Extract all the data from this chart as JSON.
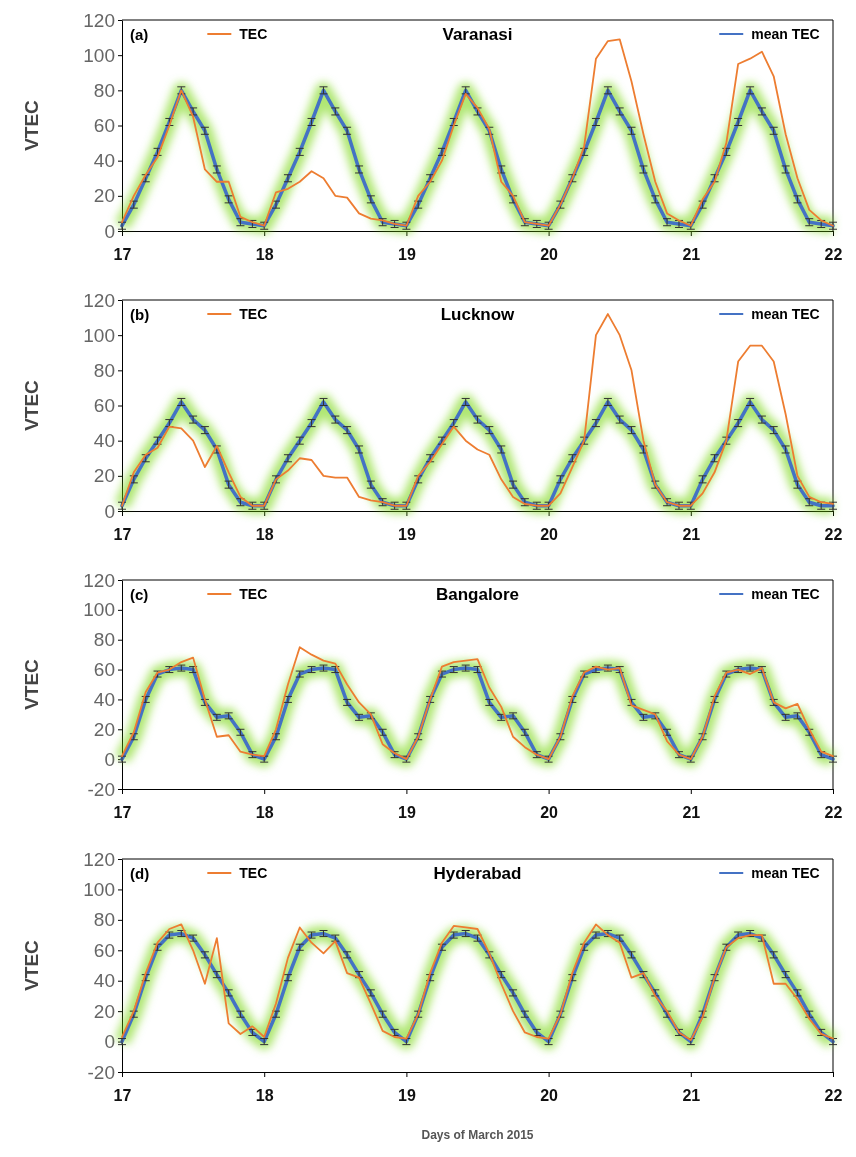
{
  "chart_data": [
    {
      "type": "line",
      "title": "Varanasi",
      "annotations": [
        "(a)"
      ],
      "ylabel": "VTEC",
      "legend": "top",
      "xlim": [
        17,
        22
      ],
      "xticks": [
        17,
        18,
        19,
        20,
        21,
        22
      ],
      "ylim": [
        0,
        120
      ],
      "yticks": [
        0,
        20,
        40,
        60,
        80,
        100,
        120
      ],
      "x": [
        17,
        17.083,
        17.167,
        17.25,
        17.333,
        17.417,
        17.5,
        17.583,
        17.667,
        17.75,
        17.833,
        17.917,
        18,
        18.083,
        18.167,
        18.25,
        18.333,
        18.417,
        18.5,
        18.583,
        18.667,
        18.75,
        18.833,
        18.917,
        19,
        19.083,
        19.167,
        19.25,
        19.333,
        19.417,
        19.5,
        19.583,
        19.667,
        19.75,
        19.833,
        19.917,
        20,
        20.083,
        20.167,
        20.25,
        20.333,
        20.417,
        20.5,
        20.583,
        20.667,
        20.75,
        20.833,
        20.917,
        21,
        21.083,
        21.167,
        21.25,
        21.333,
        21.417,
        21.5,
        21.583,
        21.667,
        21.75,
        21.833,
        21.917,
        22
      ],
      "series": [
        {
          "name": "TEC",
          "color": "#ed7d31",
          "values": [
            5,
            20,
            32,
            42,
            60,
            80,
            65,
            35,
            28,
            28,
            8,
            5,
            3,
            22,
            24,
            28,
            34,
            30,
            20,
            19,
            10,
            7,
            6,
            4,
            3,
            20,
            28,
            40,
            60,
            78,
            70,
            58,
            28,
            20,
            5,
            4,
            3,
            15,
            30,
            48,
            98,
            108,
            109,
            85,
            55,
            28,
            10,
            6,
            3,
            18,
            28,
            50,
            95,
            98,
            102,
            88,
            55,
            30,
            12,
            6,
            3
          ]
        },
        {
          "name": "mean TEC",
          "color": "#4472c4",
          "errors": [
            2,
            2,
            2,
            2,
            2,
            2,
            2,
            2,
            2,
            2,
            2,
            2,
            2,
            2,
            2,
            2,
            2,
            2,
            2,
            2,
            2,
            2,
            2,
            2,
            2,
            2,
            2,
            2,
            2,
            2,
            2,
            2,
            2,
            2,
            2,
            2,
            2,
            2,
            2,
            2,
            2,
            2,
            2,
            2,
            2,
            2,
            2,
            2,
            2,
            2,
            2,
            2,
            2,
            2,
            2,
            2,
            2,
            2,
            2,
            2,
            2
          ],
          "values": [
            3,
            15,
            30,
            45,
            62,
            80,
            68,
            57,
            35,
            18,
            5,
            4,
            3,
            15,
            30,
            45,
            62,
            80,
            68,
            57,
            35,
            18,
            5,
            4,
            3,
            15,
            30,
            45,
            62,
            80,
            68,
            57,
            35,
            18,
            5,
            4,
            3,
            15,
            30,
            45,
            62,
            80,
            68,
            57,
            35,
            18,
            5,
            4,
            3,
            15,
            30,
            45,
            62,
            80,
            68,
            57,
            35,
            18,
            5,
            4,
            3
          ]
        }
      ]
    },
    {
      "type": "line",
      "title": "Lucknow",
      "annotations": [
        "(b)"
      ],
      "ylabel": "VTEC",
      "legend": "top",
      "xlim": [
        17,
        22
      ],
      "xticks": [
        17,
        18,
        19,
        20,
        21,
        22
      ],
      "ylim": [
        0,
        120
      ],
      "yticks": [
        0,
        20,
        40,
        60,
        80,
        100,
        120
      ],
      "x": [
        17,
        17.083,
        17.167,
        17.25,
        17.333,
        17.417,
        17.5,
        17.583,
        17.667,
        17.75,
        17.833,
        17.917,
        18,
        18.083,
        18.167,
        18.25,
        18.333,
        18.417,
        18.5,
        18.583,
        18.667,
        18.75,
        18.833,
        18.917,
        19,
        19.083,
        19.167,
        19.25,
        19.333,
        19.417,
        19.5,
        19.583,
        19.667,
        19.75,
        19.833,
        19.917,
        20,
        20.083,
        20.167,
        20.25,
        20.333,
        20.417,
        20.5,
        20.583,
        20.667,
        20.75,
        20.833,
        20.917,
        21,
        21.083,
        21.167,
        21.25,
        21.333,
        21.417,
        21.5,
        21.583,
        21.667,
        21.75,
        21.833,
        21.917,
        22
      ],
      "series": [
        {
          "name": "TEC",
          "color": "#ed7d31",
          "values": [
            3,
            22,
            32,
            36,
            48,
            47,
            40,
            25,
            37,
            22,
            8,
            3,
            3,
            18,
            23,
            30,
            29,
            20,
            19,
            19,
            8,
            6,
            5,
            3,
            3,
            20,
            28,
            38,
            48,
            40,
            35,
            32,
            18,
            8,
            4,
            3,
            3,
            10,
            25,
            40,
            100,
            112,
            100,
            80,
            40,
            15,
            5,
            3,
            3,
            10,
            22,
            40,
            85,
            94,
            94,
            85,
            55,
            20,
            8,
            5,
            4
          ]
        },
        {
          "name": "mean TEC",
          "color": "#4472c4",
          "errors": [
            2,
            2,
            2,
            2,
            2,
            2,
            2,
            2,
            2,
            2,
            2,
            2,
            2,
            2,
            2,
            2,
            2,
            2,
            2,
            2,
            2,
            2,
            2,
            2,
            2,
            2,
            2,
            2,
            2,
            2,
            2,
            2,
            2,
            2,
            2,
            2,
            2,
            2,
            2,
            2,
            2,
            2,
            2,
            2,
            2,
            2,
            2,
            2,
            2,
            2,
            2,
            2,
            2,
            2,
            2,
            2,
            2,
            2,
            2,
            2,
            2
          ],
          "values": [
            3,
            18,
            30,
            40,
            50,
            62,
            52,
            46,
            35,
            15,
            5,
            3,
            3,
            18,
            30,
            40,
            50,
            62,
            52,
            46,
            35,
            15,
            5,
            3,
            3,
            18,
            30,
            40,
            50,
            62,
            52,
            46,
            35,
            15,
            5,
            3,
            3,
            18,
            30,
            40,
            50,
            62,
            52,
            46,
            35,
            15,
            5,
            3,
            3,
            18,
            30,
            40,
            50,
            62,
            52,
            46,
            35,
            15,
            5,
            3,
            3
          ]
        }
      ]
    },
    {
      "type": "line",
      "title": "Bangalore",
      "annotations": [
        "(c)"
      ],
      "ylabel": "VTEC",
      "legend": "top",
      "xlim": [
        17,
        22
      ],
      "xticks": [
        17,
        18,
        19,
        20,
        21,
        22
      ],
      "ylim": [
        -20,
        120
      ],
      "yticks": [
        -20,
        0,
        20,
        40,
        60,
        80,
        100,
        120
      ],
      "x": [
        17,
        17.083,
        17.167,
        17.25,
        17.333,
        17.417,
        17.5,
        17.583,
        17.667,
        17.75,
        17.833,
        17.917,
        18,
        18.083,
        18.167,
        18.25,
        18.333,
        18.417,
        18.5,
        18.583,
        18.667,
        18.75,
        18.833,
        18.917,
        19,
        19.083,
        19.167,
        19.25,
        19.333,
        19.417,
        19.5,
        19.583,
        19.667,
        19.75,
        19.833,
        19.917,
        20,
        20.083,
        20.167,
        20.25,
        20.333,
        20.417,
        20.5,
        20.583,
        20.667,
        20.75,
        20.833,
        20.917,
        21,
        21.083,
        21.167,
        21.25,
        21.333,
        21.417,
        21.5,
        21.583,
        21.667,
        21.75,
        21.833,
        21.917,
        22
      ],
      "series": [
        {
          "name": "TEC",
          "color": "#ed7d31",
          "values": [
            2,
            18,
            45,
            58,
            60,
            65,
            68,
            40,
            15,
            16,
            5,
            3,
            2,
            20,
            50,
            75,
            70,
            66,
            64,
            50,
            38,
            30,
            10,
            4,
            0,
            15,
            40,
            62,
            65,
            66,
            67,
            48,
            35,
            15,
            8,
            3,
            0,
            15,
            42,
            58,
            62,
            60,
            61,
            36,
            33,
            30,
            12,
            3,
            0,
            15,
            42,
            58,
            60,
            57,
            61,
            38,
            34,
            37,
            20,
            5,
            2
          ]
        },
        {
          "name": "mean TEC",
          "color": "#4472c4",
          "errors": [
            2,
            2,
            2,
            2,
            2,
            2,
            2,
            2,
            2,
            2,
            2,
            2,
            2,
            2,
            2,
            2,
            2,
            2,
            2,
            2,
            2,
            2,
            2,
            2,
            2,
            2,
            2,
            2,
            2,
            2,
            2,
            2,
            2,
            2,
            2,
            2,
            2,
            2,
            2,
            2,
            2,
            2,
            2,
            2,
            2,
            2,
            2,
            2,
            2,
            2,
            2,
            2,
            2,
            2,
            2,
            2,
            2,
            2,
            2,
            2,
            2
          ],
          "values": [
            0,
            15,
            40,
            57,
            60,
            61,
            60,
            38,
            28,
            29,
            18,
            3,
            0,
            15,
            40,
            57,
            60,
            61,
            60,
            38,
            28,
            29,
            18,
            3,
            0,
            15,
            40,
            57,
            60,
            61,
            60,
            38,
            28,
            29,
            18,
            3,
            0,
            15,
            40,
            57,
            60,
            61,
            60,
            38,
            28,
            29,
            18,
            3,
            0,
            15,
            40,
            57,
            60,
            61,
            60,
            38,
            28,
            29,
            18,
            3,
            0
          ]
        }
      ]
    },
    {
      "type": "line",
      "title": "Hyderabad",
      "annotations": [
        "(d)"
      ],
      "ylabel": "VTEC",
      "xlabel": "Days of March 2015",
      "legend": "top",
      "xlim": [
        17,
        22
      ],
      "xticks": [
        17,
        18,
        19,
        20,
        21,
        22
      ],
      "ylim": [
        -20,
        120
      ],
      "yticks": [
        -20,
        0,
        20,
        40,
        60,
        80,
        100,
        120
      ],
      "x": [
        17,
        17.083,
        17.167,
        17.25,
        17.333,
        17.417,
        17.5,
        17.583,
        17.667,
        17.75,
        17.833,
        17.917,
        18,
        18.083,
        18.167,
        18.25,
        18.333,
        18.417,
        18.5,
        18.583,
        18.667,
        18.75,
        18.833,
        18.917,
        19,
        19.083,
        19.167,
        19.25,
        19.333,
        19.417,
        19.5,
        19.583,
        19.667,
        19.75,
        19.833,
        19.917,
        20,
        20.083,
        20.167,
        20.25,
        20.333,
        20.417,
        20.5,
        20.583,
        20.667,
        20.75,
        20.833,
        20.917,
        21,
        21.083,
        21.167,
        21.25,
        21.333,
        21.417,
        21.5,
        21.583,
        21.667,
        21.75,
        21.833,
        21.917,
        22
      ],
      "series": [
        {
          "name": "TEC",
          "color": "#ed7d31",
          "values": [
            3,
            20,
            45,
            65,
            74,
            77,
            60,
            38,
            68,
            12,
            5,
            10,
            3,
            25,
            55,
            75,
            65,
            58,
            66,
            45,
            42,
            25,
            7,
            3,
            2,
            18,
            45,
            65,
            76,
            75,
            74,
            58,
            38,
            20,
            6,
            3,
            2,
            18,
            45,
            65,
            77,
            70,
            65,
            42,
            45,
            30,
            20,
            6,
            1,
            16,
            42,
            62,
            68,
            70,
            70,
            38,
            38,
            28,
            15,
            5,
            2
          ]
        },
        {
          "name": "mean TEC",
          "color": "#4472c4",
          "errors": [
            2,
            2,
            2,
            2,
            2,
            2,
            2,
            2,
            2,
            2,
            2,
            2,
            2,
            2,
            2,
            2,
            2,
            2,
            2,
            2,
            2,
            2,
            2,
            2,
            2,
            2,
            2,
            2,
            2,
            2,
            2,
            2,
            2,
            2,
            2,
            2,
            2,
            2,
            2,
            2,
            2,
            2,
            2,
            2,
            2,
            2,
            2,
            2,
            2,
            2,
            2,
            2,
            2,
            2,
            2,
            2,
            2,
            2,
            2,
            2,
            2
          ],
          "values": [
            0,
            18,
            42,
            62,
            70,
            71,
            68,
            57,
            44,
            32,
            18,
            6,
            0,
            18,
            42,
            62,
            70,
            71,
            68,
            57,
            44,
            32,
            18,
            6,
            0,
            18,
            42,
            62,
            70,
            71,
            68,
            57,
            44,
            32,
            18,
            6,
            0,
            18,
            42,
            62,
            70,
            71,
            68,
            57,
            44,
            32,
            18,
            6,
            0,
            18,
            42,
            62,
            70,
            71,
            68,
            57,
            44,
            32,
            18,
            6,
            0
          ]
        }
      ]
    }
  ]
}
